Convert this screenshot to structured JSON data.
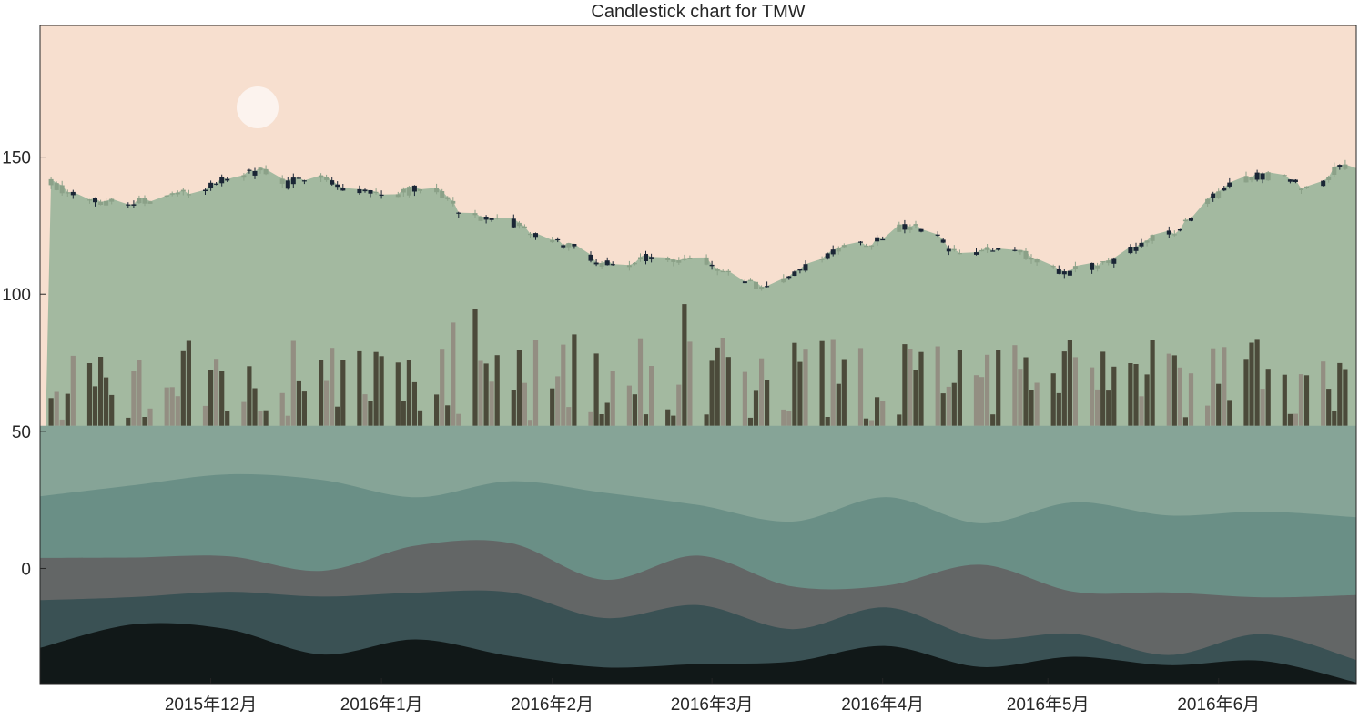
{
  "chart_data": {
    "type": "candlestick",
    "title": "Candlestick chart for TMW",
    "xlabel": "",
    "ylabel": "",
    "x_range": [
      "2015-10-31",
      "2016-06-26"
    ],
    "ylim": [
      -42,
      198
    ],
    "y_ticks": [
      0,
      50,
      100,
      150
    ],
    "x_ticks": [
      {
        "date": "2015-12-01",
        "label": "2015年12月"
      },
      {
        "date": "2016-01-01",
        "label": "2016年1月"
      },
      {
        "date": "2016-02-01",
        "label": "2016年2月"
      },
      {
        "date": "2016-03-01",
        "label": "2016年3月"
      },
      {
        "date": "2016-04-01",
        "label": "2016年4月"
      },
      {
        "date": "2016-05-01",
        "label": "2016年5月"
      },
      {
        "date": "2016-06-01",
        "label": "2016年6月"
      }
    ],
    "close_profile": [
      [
        "2015-10-31",
        143
      ],
      [
        "2015-11-05",
        137
      ],
      [
        "2015-11-10",
        134
      ],
      [
        "2015-11-15",
        133
      ],
      [
        "2015-11-20",
        134
      ],
      [
        "2015-11-25",
        136
      ],
      [
        "2015-11-30",
        139
      ],
      [
        "2015-12-05",
        143
      ],
      [
        "2015-12-10",
        145
      ],
      [
        "2015-12-15",
        140
      ],
      [
        "2015-12-20",
        145
      ],
      [
        "2015-12-25",
        139
      ],
      [
        "2015-12-31",
        137
      ],
      [
        "2016-01-05",
        137
      ],
      [
        "2016-01-10",
        140
      ],
      [
        "2016-01-15",
        131
      ],
      [
        "2016-01-20",
        127
      ],
      [
        "2016-01-25",
        126
      ],
      [
        "2016-01-30",
        120
      ],
      [
        "2016-02-04",
        118
      ],
      [
        "2016-02-09",
        112
      ],
      [
        "2016-02-14",
        110
      ],
      [
        "2016-02-19",
        114
      ],
      [
        "2016-02-24",
        113
      ],
      [
        "2016-02-29",
        112
      ],
      [
        "2016-03-05",
        107
      ],
      [
        "2016-03-10",
        102
      ],
      [
        "2016-03-15",
        106
      ],
      [
        "2016-03-20",
        112
      ],
      [
        "2016-03-25",
        118
      ],
      [
        "2016-03-30",
        119
      ],
      [
        "2016-04-04",
        124
      ],
      [
        "2016-04-09",
        124
      ],
      [
        "2016-04-14",
        115
      ],
      [
        "2016-04-19",
        115
      ],
      [
        "2016-04-24",
        118
      ],
      [
        "2016-04-29",
        112
      ],
      [
        "2016-05-04",
        108
      ],
      [
        "2016-05-09",
        110
      ],
      [
        "2016-05-14",
        113
      ],
      [
        "2016-05-19",
        120
      ],
      [
        "2016-05-24",
        122
      ],
      [
        "2016-05-29",
        132
      ],
      [
        "2016-06-03",
        140
      ],
      [
        "2016-06-08",
        143
      ],
      [
        "2016-06-13",
        143
      ],
      [
        "2016-06-18",
        137
      ],
      [
        "2016-06-23",
        147
      ],
      [
        "2016-06-26",
        146
      ]
    ],
    "volume_panel_range": [
      52,
      100
    ],
    "colors": {
      "sky": "#f7dfcf",
      "sun": "#fcf3ee",
      "price_area": "#a3b9a0",
      "candle_up": "#8ba188",
      "candle_down": "#1a2535",
      "volume_dark": "#4b4a3a",
      "volume_light": "#938e82",
      "wave_1": "#86a497",
      "wave_2": "#6a8f86",
      "wave_3": "#636666",
      "wave_4": "#3a5154",
      "wave_5": "#111818"
    }
  }
}
